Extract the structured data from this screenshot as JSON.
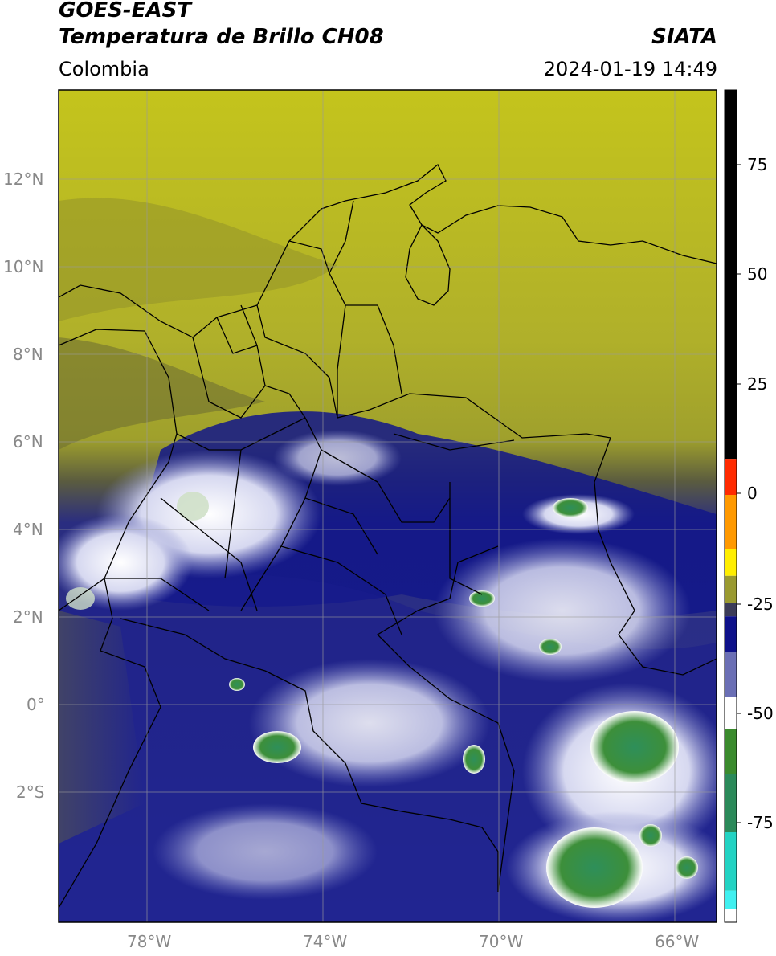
{
  "header": {
    "satellite": "GOES-EAST",
    "product": "Temperatura de Brillo CH08",
    "organization": "SIATA",
    "region": "Colombia",
    "datetime": "2024-01-19 14:49"
  },
  "map": {
    "lon_ticks": [
      "78°W",
      "74°W",
      "70°W",
      "66°W"
    ],
    "lat_ticks": [
      "12°N",
      "10°N",
      "8°N",
      "6°N",
      "4°N",
      "2°N",
      "0°",
      "2°S"
    ],
    "extent": {
      "lon_min": -80,
      "lon_max": -65,
      "lat_min": -5,
      "lat_max": 14
    },
    "colors": {
      "warm_dry": "#b8b826",
      "olive": "#86862d",
      "cold_cloud": "#1c1f8a",
      "very_cold": "#ffffff",
      "coldest": "#3a8f3a"
    }
  },
  "colorbar": {
    "ticks": [
      "75",
      "50",
      "25",
      "0",
      "-25",
      "-50",
      "-75"
    ],
    "range": [
      -95,
      90
    ],
    "segments": [
      {
        "from": 8,
        "to": 90,
        "color": "#000000"
      },
      {
        "from": 0,
        "to": 8,
        "color": "#ff2a00"
      },
      {
        "from": -12,
        "to": 0,
        "color": "#ff9900"
      },
      {
        "from": -18,
        "to": -12,
        "color": "#ffee00"
      },
      {
        "from": -24,
        "to": -18,
        "color": "#9a9a30"
      },
      {
        "from": -27,
        "to": -24,
        "color": "#3c3c58"
      },
      {
        "from": -35,
        "to": -27,
        "color": "#0e118a"
      },
      {
        "from": -45,
        "to": -35,
        "color": "#6b6fb5"
      },
      {
        "from": -52,
        "to": -45,
        "color": "#ffffff"
      },
      {
        "from": -62,
        "to": -52,
        "color": "#3b8b2d"
      },
      {
        "from": -75,
        "to": -62,
        "color": "#2b8a5a"
      },
      {
        "from": -88,
        "to": -75,
        "color": "#22d3c3"
      },
      {
        "from": -92,
        "to": -88,
        "color": "#40f0f0"
      },
      {
        "from": -95,
        "to": -92,
        "color": "#ffffff"
      }
    ]
  }
}
